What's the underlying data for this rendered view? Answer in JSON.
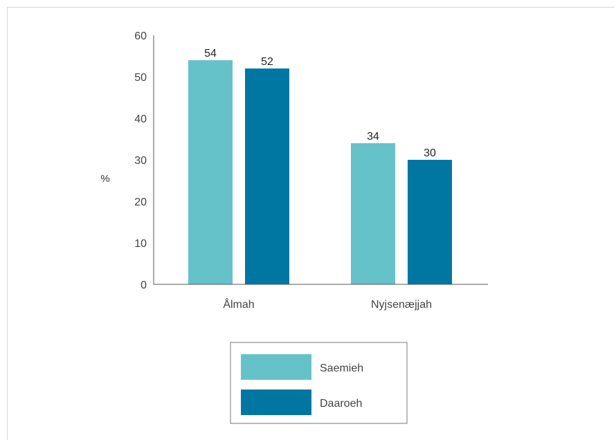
{
  "chart_data": {
    "type": "bar",
    "ylabel": "%",
    "ylim": [
      0,
      60
    ],
    "yticks": [
      0,
      10,
      20,
      30,
      40,
      50,
      60
    ],
    "categories": [
      "Ålmah",
      "Nyjsenæjjah"
    ],
    "series": [
      {
        "name": "Saemieh",
        "color": "#66c2c9",
        "values": [
          54,
          34
        ]
      },
      {
        "name": "Daaroeh",
        "color": "#0077a3",
        "values": [
          52,
          30
        ]
      }
    ],
    "grid": false,
    "legend_position": "bottom-center"
  }
}
